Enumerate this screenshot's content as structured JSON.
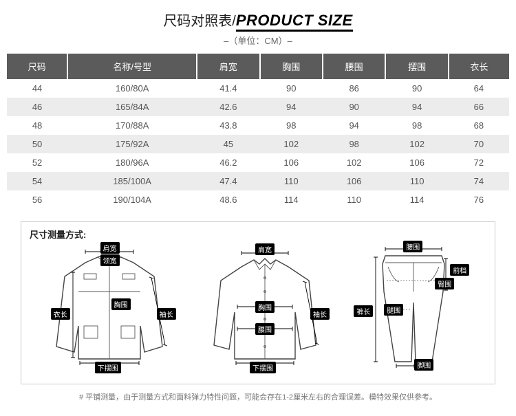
{
  "title": {
    "cn": "尺码对照表/",
    "en": "PRODUCT SIZE"
  },
  "unit_label": "–（单位：CM）–",
  "table": {
    "columns": [
      "尺码",
      "名称/号型",
      "肩宽",
      "胸围",
      "腰围",
      "摆围",
      "衣长"
    ],
    "rows": [
      [
        "44",
        "160/80A",
        "41.4",
        "90",
        "86",
        "90",
        "64"
      ],
      [
        "46",
        "165/84A",
        "42.6",
        "94",
        "90",
        "94",
        "66"
      ],
      [
        "48",
        "170/88A",
        "43.8",
        "98",
        "94",
        "98",
        "68"
      ],
      [
        "50",
        "175/92A",
        "45",
        "102",
        "98",
        "102",
        "70"
      ],
      [
        "52",
        "180/96A",
        "46.2",
        "106",
        "102",
        "106",
        "72"
      ],
      [
        "54",
        "185/100A",
        "47.4",
        "110",
        "106",
        "110",
        "74"
      ],
      [
        "56",
        "190/104A",
        "48.6",
        "114",
        "110",
        "114",
        "76"
      ]
    ],
    "header_bg": "#5b5b5b",
    "alt_row_bg": "#ececec"
  },
  "measure": {
    "title": "尺寸测量方式:",
    "jacket_labels": {
      "shoulder": "肩宽",
      "collar": "领宽",
      "chest": "胸围",
      "length": "衣长",
      "sleeve": "袖长",
      "hem": "下摆围"
    },
    "shirt_labels": {
      "shoulder": "肩宽",
      "chest": "胸围",
      "waist": "腰围",
      "hem": "下摆围",
      "sleeve": "袖长"
    },
    "pants_labels": {
      "waist": "腰围",
      "hip": "臀围",
      "rise": "前档",
      "thigh": "腿围",
      "length": "裤长",
      "leg_open": "脚围"
    }
  },
  "footnote": "# 平铺测量，由于测量方式和面料弹力特性问题，可能会存在1-2厘米左右的合理误差。模特效果仅供参考。"
}
